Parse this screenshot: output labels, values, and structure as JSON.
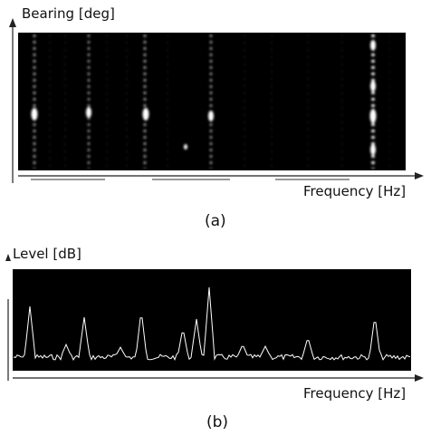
{
  "panel_a": {
    "y_axis_label": "Bearing [deg]",
    "x_axis_label": "Frequency [Hz]",
    "caption": "(a)"
  },
  "panel_b": {
    "y_axis_label": "Level [dB]",
    "x_axis_label": "Frequency [Hz]",
    "caption": "(b)"
  },
  "colors": {
    "background": "#000000",
    "signal": "#ffffff",
    "axis": "#222222"
  }
}
